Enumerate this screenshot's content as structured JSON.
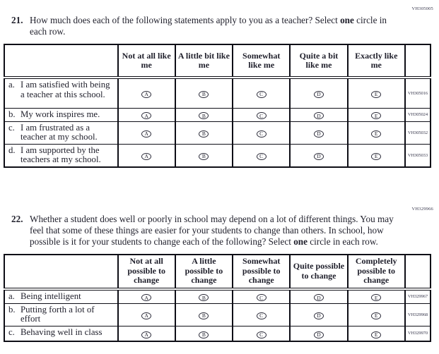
{
  "colors": {
    "ink": "#1f1f2b",
    "table_border": "#0e0e16",
    "code_text": "#35354a",
    "background": "#ffffff"
  },
  "q21": {
    "number": "21.",
    "code": "VH305005",
    "prompt_before": "How much does each of the following statements apply to you as a teacher? Select ",
    "prompt_bold": "one",
    "prompt_after": " circle in each row.",
    "table": {
      "option_letters": [
        "A",
        "B",
        "C",
        "D",
        "E"
      ],
      "column_headers": [
        "Not at all like me",
        "A little bit like me",
        "Somewhat like me",
        "Quite a bit like me",
        "Exactly like me"
      ],
      "rows": [
        {
          "letter": "a.",
          "statement": "I am satisfied with being a teacher at this school.",
          "code": "VH305016"
        },
        {
          "letter": "b.",
          "statement": "My work inspires me.",
          "code": "VH305024"
        },
        {
          "letter": "c.",
          "statement": "I am frustrated as a teacher at my school.",
          "code": "VH305032"
        },
        {
          "letter": "d.",
          "statement": "I am supported by the teachers at my school.",
          "code": "VH305033"
        }
      ]
    }
  },
  "q22": {
    "number": "22.",
    "code": "VH329966",
    "prompt_before": "Whether a student does well or poorly in school may depend on a lot of different things. You may feel that some of these things are easier for your students to change than others. In school, how possible is it for your students to change each of the following? Select ",
    "prompt_bold": "one",
    "prompt_after": " circle in each row.",
    "table": {
      "option_letters": [
        "A",
        "B",
        "C",
        "D",
        "E"
      ],
      "column_headers": [
        "Not at all possible to change",
        "A little possible to change",
        "Somewhat possible to change",
        "Quite possible to change",
        "Completely possible to change"
      ],
      "rows": [
        {
          "letter": "a.",
          "statement": "Being intelligent",
          "code": "VH329967"
        },
        {
          "letter": "b.",
          "statement": "Putting forth a lot of effort",
          "code": "VH329968"
        },
        {
          "letter": "c.",
          "statement": "Behaving well in class",
          "code": "VH329970"
        }
      ]
    }
  }
}
